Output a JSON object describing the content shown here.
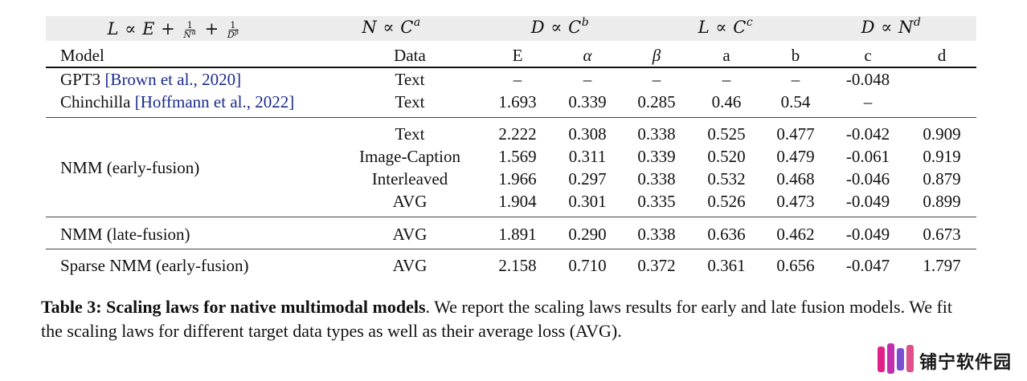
{
  "table": {
    "formulas": {
      "loss": "L ∝ E + 1/N^α + 1/D^β",
      "params": "N ∝ C^a",
      "data": "D ∝ C^b",
      "loss_compute": "L ∝ C^c",
      "data_params": "D ∝ N^d"
    },
    "headers": [
      "Model",
      "Data",
      "E",
      "α",
      "β",
      "a",
      "b",
      "c",
      "d"
    ],
    "rows": [
      {
        "model": "GPT3 ",
        "citation": "[Brown et al., 2020]",
        "data": "Text",
        "E": "–",
        "alpha": "–",
        "beta": "–",
        "a": "–",
        "b": "–",
        "c": "-0.048",
        "d": ""
      },
      {
        "model": "Chinchilla ",
        "citation": "[Hoffmann et al., 2022]",
        "data": "Text",
        "E": "1.693",
        "alpha": "0.339",
        "beta": "0.285",
        "a": "0.46",
        "b": "0.54",
        "c": "–",
        "d": ""
      },
      {
        "model": "NMM (early-fusion)",
        "citation": "",
        "data": "Text",
        "E": "2.222",
        "alpha": "0.308",
        "beta": "0.338",
        "a": "0.525",
        "b": "0.477",
        "c": "-0.042",
        "d": "0.909"
      },
      {
        "model": "",
        "citation": "",
        "data": "Image-Caption",
        "E": "1.569",
        "alpha": "0.311",
        "beta": "0.339",
        "a": "0.520",
        "b": "0.479",
        "c": "-0.061",
        "d": "0.919"
      },
      {
        "model": "",
        "citation": "",
        "data": "Interleaved",
        "E": "1.966",
        "alpha": "0.297",
        "beta": "0.338",
        "a": "0.532",
        "b": "0.468",
        "c": "-0.046",
        "d": "0.879"
      },
      {
        "model": "",
        "citation": "",
        "data": "AVG",
        "E": "1.904",
        "alpha": "0.301",
        "beta": "0.335",
        "a": "0.526",
        "b": "0.473",
        "c": "-0.049",
        "d": "0.899"
      },
      {
        "model": "NMM (late-fusion)",
        "citation": "",
        "data": "AVG",
        "E": "1.891",
        "alpha": "0.290",
        "beta": "0.338",
        "a": "0.636",
        "b": "0.462",
        "c": "-0.049",
        "d": "0.673"
      },
      {
        "model": "Sparse NMM (early-fusion)",
        "citation": "",
        "data": "AVG",
        "E": "2.158",
        "alpha": "0.710",
        "beta": "0.372",
        "a": "0.361",
        "b": "0.656",
        "c": "-0.047",
        "d": "1.797"
      }
    ]
  },
  "caption": {
    "label": "Table 3: Scaling laws for native multimodal models",
    "text": ". We report the scaling laws results for early and late fusion models. We fit the scaling laws for different target data types as well as their average loss (AVG)."
  },
  "watermark": {
    "text": "铺宁软件园",
    "colors": [
      "#e0218a",
      "#b13cc8",
      "#6a5ad6",
      "#e05a8a"
    ]
  }
}
